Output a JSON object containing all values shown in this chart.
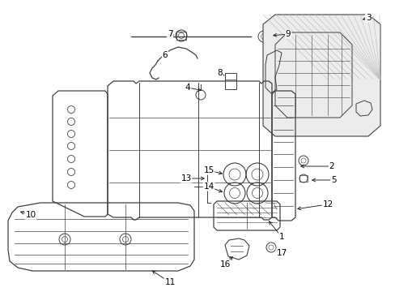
{
  "bg_color": "#ffffff",
  "line_color": "#404040",
  "label_color": "#000000",
  "font_size": 7.5
}
